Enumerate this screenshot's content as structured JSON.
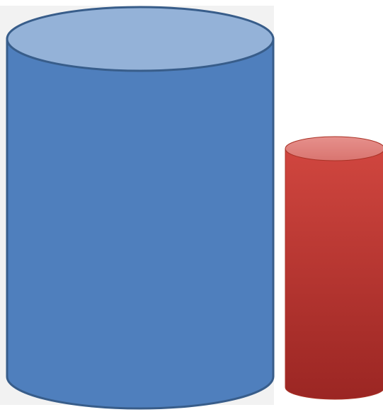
{
  "shapes": [
    {
      "id": "blue-cylinder",
      "kind": "cylinder",
      "body_color": "#4f7fbd",
      "top_color": "#94b2d8",
      "outline_color": "#385d8a",
      "shade_style": "flat"
    },
    {
      "id": "red-cylinder",
      "kind": "cylinder",
      "body_color": "#c0392b",
      "top_color": "#e07f7b",
      "outline_color": "#a93226",
      "shade_style": "vertical-gradient"
    }
  ],
  "background_color": "#ffffff",
  "frame_color": "#f2f2f2"
}
